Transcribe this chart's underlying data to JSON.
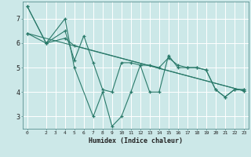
{
  "xlabel": "Humidex (Indice chaleur)",
  "bg_color": "#cce8e8",
  "line_color": "#2a7a6a",
  "grid_color": "#ffffff",
  "xlim": [
    -0.5,
    23.5
  ],
  "ylim": [
    2.5,
    7.7
  ],
  "yticks": [
    3,
    4,
    5,
    6,
    7
  ],
  "xticks": [
    0,
    2,
    3,
    4,
    5,
    6,
    7,
    8,
    9,
    10,
    11,
    12,
    13,
    14,
    15,
    16,
    17,
    18,
    19,
    20,
    21,
    22,
    23
  ],
  "lines": [
    {
      "x": [
        0,
        2,
        4,
        5,
        7,
        8,
        9,
        10,
        11,
        12,
        13,
        14,
        15,
        16,
        17,
        18,
        19,
        20,
        21,
        22,
        23
      ],
      "y": [
        7.5,
        6.0,
        7.0,
        5.0,
        3.0,
        4.0,
        2.6,
        3.0,
        4.0,
        5.1,
        4.0,
        4.0,
        5.5,
        5.0,
        5.0,
        5.0,
        4.9,
        4.1,
        3.8,
        4.1,
        4.1
      ]
    },
    {
      "x": [
        0,
        2,
        4,
        5,
        6,
        7,
        8,
        9,
        10,
        11,
        12,
        13,
        14,
        15,
        16,
        17,
        18,
        19,
        20,
        21,
        22,
        23
      ],
      "y": [
        7.5,
        6.0,
        6.5,
        5.3,
        6.3,
        5.2,
        4.1,
        4.0,
        5.2,
        5.2,
        5.1,
        5.1,
        5.0,
        5.4,
        5.1,
        5.0,
        5.0,
        4.9,
        4.1,
        3.8,
        4.1,
        4.1
      ]
    },
    {
      "x": [
        0,
        2,
        4,
        5,
        23
      ],
      "y": [
        6.4,
        6.0,
        6.2,
        5.9,
        4.05
      ]
    },
    {
      "x": [
        0,
        23
      ],
      "y": [
        6.4,
        4.05
      ]
    }
  ]
}
